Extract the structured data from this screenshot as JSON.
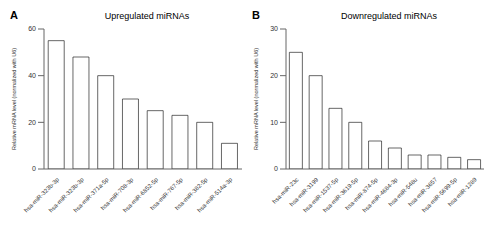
{
  "chart_data": [
    {
      "type": "bar",
      "title": "Upregulated miRNAs",
      "annotations": [
        "A"
      ],
      "categories": [
        "hsa-miR-323b-3p",
        "hsa-miR-323b-3p",
        "hsa-miR-371a-5p",
        "hsa-miR-708-3p",
        "hsa-miR-6852-5p",
        "hsa-miR-767-5p",
        "hsa-miR-382-5p",
        "hsa-miR-514a-3p"
      ],
      "values": [
        55,
        48,
        40,
        30,
        25,
        23,
        20,
        11
      ],
      "color": "white",
      "ylim": [
        0,
        60
      ],
      "yticks": [
        0,
        20,
        40,
        60
      ],
      "ylabel": "Relative mRNA level (normalized with U6)"
    },
    {
      "type": "bar",
      "title": "Downregulated miRNAs",
      "annotations": [
        "B"
      ],
      "categories": [
        "hsa-miR-23c",
        "hsa-miR-3199",
        "hsa-miR-1537-5p",
        "hsa-miR-3619-5p",
        "hsa-miR-874-5p",
        "hsa-miR-4684-3p",
        "hsa-miR-548u",
        "hsa-miR-3657",
        "hsa-miR-5699-5p",
        "hsa-miR-1289"
      ],
      "values": [
        25,
        20,
        13,
        10,
        6,
        4.5,
        3,
        3,
        2.5,
        2
      ],
      "color": "white",
      "ylim": [
        0,
        30
      ],
      "yticks": [
        0,
        10,
        20,
        30
      ],
      "ylabel": "Relative mRNA level (normalized with U6)"
    }
  ]
}
